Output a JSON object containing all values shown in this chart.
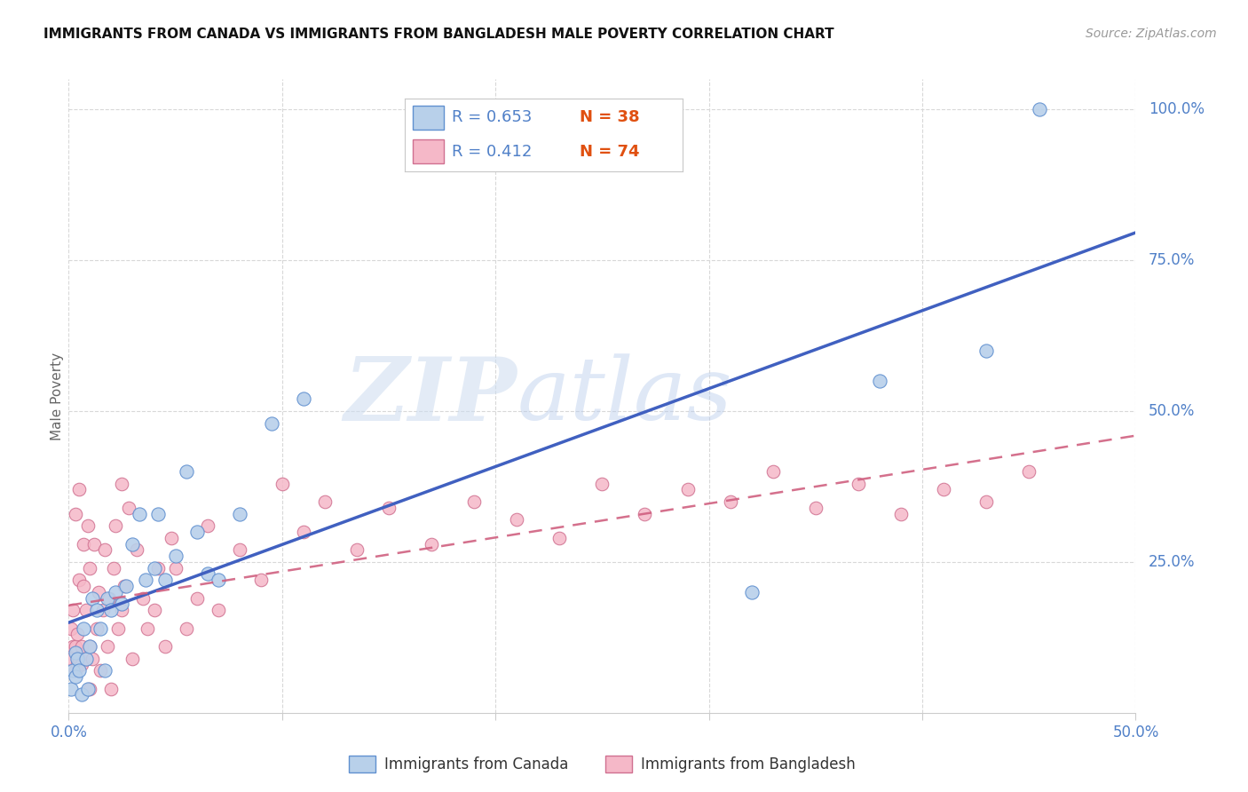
{
  "title": "IMMIGRANTS FROM CANADA VS IMMIGRANTS FROM BANGLADESH MALE POVERTY CORRELATION CHART",
  "source": "Source: ZipAtlas.com",
  "ylabel_label": "Male Poverty",
  "xlim": [
    0.0,
    0.5
  ],
  "ylim": [
    0.0,
    1.05
  ],
  "xticks": [
    0.0,
    0.1,
    0.2,
    0.3,
    0.4,
    0.5
  ],
  "yticks": [
    0.25,
    0.5,
    0.75,
    1.0
  ],
  "xtick_labels_show": [
    "0.0%",
    "50.0%"
  ],
  "ytick_labels": [
    "25.0%",
    "50.0%",
    "75.0%",
    "100.0%"
  ],
  "canada_R": 0.653,
  "canada_N": 38,
  "bangladesh_R": 0.412,
  "bangladesh_N": 74,
  "canada_color": "#b8d0ea",
  "bangladesh_color": "#f5b8c8",
  "canada_edge_color": "#6090d0",
  "bangladesh_edge_color": "#d07090",
  "canada_line_color": "#4060c0",
  "bangladesh_line_color": "#d06080",
  "watermark_zip": "ZIP",
  "watermark_atlas": "atlas",
  "bg_color": "#ffffff",
  "grid_color": "#d8d8d8",
  "tick_label_color": "#5080c8",
  "canada_x": [
    0.001,
    0.002,
    0.003,
    0.003,
    0.004,
    0.005,
    0.006,
    0.007,
    0.008,
    0.009,
    0.01,
    0.011,
    0.013,
    0.015,
    0.017,
    0.018,
    0.02,
    0.022,
    0.025,
    0.027,
    0.03,
    0.033,
    0.036,
    0.04,
    0.042,
    0.045,
    0.05,
    0.055,
    0.06,
    0.065,
    0.07,
    0.08,
    0.095,
    0.11,
    0.32,
    0.38,
    0.43,
    0.455
  ],
  "canada_y": [
    0.04,
    0.07,
    0.06,
    0.1,
    0.09,
    0.07,
    0.03,
    0.14,
    0.09,
    0.04,
    0.11,
    0.19,
    0.17,
    0.14,
    0.07,
    0.19,
    0.17,
    0.2,
    0.18,
    0.21,
    0.28,
    0.33,
    0.22,
    0.24,
    0.33,
    0.22,
    0.26,
    0.4,
    0.3,
    0.23,
    0.22,
    0.33,
    0.48,
    0.52,
    0.2,
    0.55,
    0.6,
    1.0
  ],
  "bangladesh_x": [
    0.001,
    0.001,
    0.002,
    0.002,
    0.003,
    0.003,
    0.004,
    0.004,
    0.005,
    0.005,
    0.006,
    0.006,
    0.007,
    0.007,
    0.008,
    0.008,
    0.009,
    0.01,
    0.01,
    0.011,
    0.012,
    0.013,
    0.014,
    0.015,
    0.016,
    0.017,
    0.018,
    0.019,
    0.02,
    0.021,
    0.022,
    0.023,
    0.025,
    0.026,
    0.028,
    0.03,
    0.032,
    0.035,
    0.037,
    0.04,
    0.042,
    0.045,
    0.048,
    0.05,
    0.055,
    0.06,
    0.065,
    0.07,
    0.08,
    0.09,
    0.1,
    0.11,
    0.12,
    0.135,
    0.15,
    0.17,
    0.19,
    0.21,
    0.23,
    0.25,
    0.27,
    0.29,
    0.31,
    0.33,
    0.35,
    0.37,
    0.39,
    0.41,
    0.43,
    0.45,
    0.003,
    0.005,
    0.01,
    0.025
  ],
  "bangladesh_y": [
    0.09,
    0.14,
    0.11,
    0.17,
    0.07,
    0.11,
    0.08,
    0.13,
    0.22,
    0.09,
    0.11,
    0.08,
    0.28,
    0.21,
    0.17,
    0.09,
    0.31,
    0.11,
    0.24,
    0.09,
    0.28,
    0.14,
    0.2,
    0.07,
    0.17,
    0.27,
    0.11,
    0.19,
    0.04,
    0.24,
    0.31,
    0.14,
    0.17,
    0.21,
    0.34,
    0.09,
    0.27,
    0.19,
    0.14,
    0.17,
    0.24,
    0.11,
    0.29,
    0.24,
    0.14,
    0.19,
    0.31,
    0.17,
    0.27,
    0.22,
    0.38,
    0.3,
    0.35,
    0.27,
    0.34,
    0.28,
    0.35,
    0.32,
    0.29,
    0.38,
    0.33,
    0.37,
    0.35,
    0.4,
    0.34,
    0.38,
    0.33,
    0.37,
    0.35,
    0.4,
    0.33,
    0.37,
    0.04,
    0.38
  ]
}
